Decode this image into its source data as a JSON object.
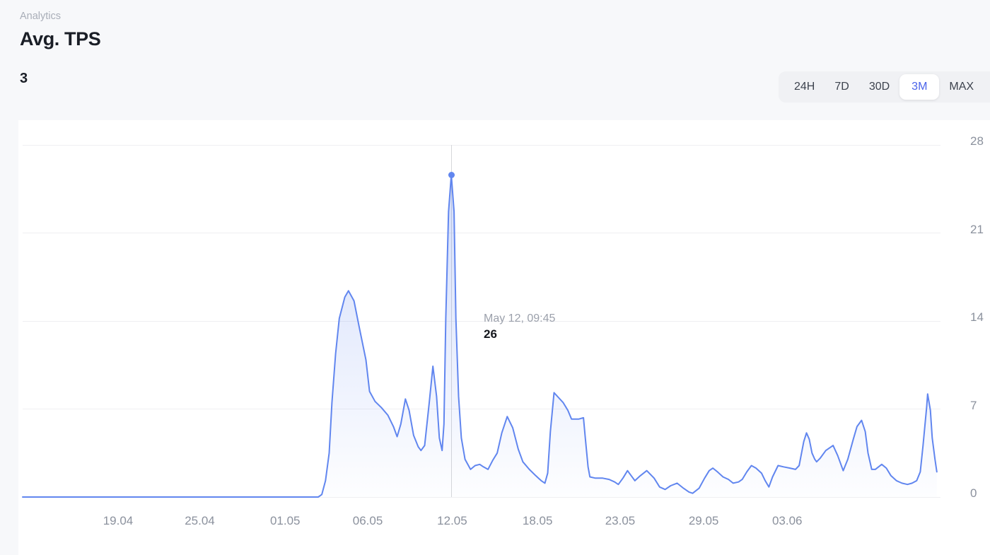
{
  "header": {
    "section_label": "Analytics",
    "title": "Avg. TPS",
    "current_value": "3"
  },
  "time_range": {
    "options": [
      "24H",
      "7D",
      "30D",
      "3M",
      "MAX"
    ],
    "active": "3M"
  },
  "tooltip": {
    "date": "May 12, 09:45",
    "value": "26"
  },
  "colors": {
    "accent_blue": "#4a63ea",
    "line_blue": "#6186ef",
    "fill_top": "rgba(97,134,240,0.28)",
    "fill_bottom": "rgba(97,134,240,0.01)",
    "crosshair_gray": "#d6d7da",
    "grid_gray": "#efeff2",
    "axis_text_gray": "#8b919d"
  },
  "chart_data": {
    "type": "area",
    "title": "Avg. TPS",
    "xlabel": "",
    "ylabel": "",
    "ylim": [
      0,
      28
    ],
    "y_ticks": [
      0,
      7,
      14,
      21,
      28
    ],
    "grid": true,
    "legend": "none",
    "x_ticks": [
      {
        "label": "19.04",
        "x": 0.104
      },
      {
        "label": "25.04",
        "x": 0.193
      },
      {
        "label": "01.05",
        "x": 0.286
      },
      {
        "label": "06.05",
        "x": 0.376
      },
      {
        "label": "12.05",
        "x": 0.468
      },
      {
        "label": "18.05",
        "x": 0.561
      },
      {
        "label": "23.05",
        "x": 0.651
      },
      {
        "label": "29.05",
        "x": 0.742
      },
      {
        "label": "03.06",
        "x": 0.833
      }
    ],
    "hover": {
      "x": 0.467,
      "value": 25.6,
      "date": "May 12, 09:45",
      "display_value": "26"
    },
    "points": [
      [
        0,
        0
      ],
      [
        0.322,
        0
      ],
      [
        0.326,
        0.2
      ],
      [
        0.33,
        1.3
      ],
      [
        0.334,
        3.5
      ],
      [
        0.337,
        7.5
      ],
      [
        0.341,
        11.4
      ],
      [
        0.345,
        14.2
      ],
      [
        0.351,
        15.9
      ],
      [
        0.355,
        16.4
      ],
      [
        0.361,
        15.6
      ],
      [
        0.367,
        13.4
      ],
      [
        0.374,
        10.9
      ],
      [
        0.378,
        8.4
      ],
      [
        0.384,
        7.6
      ],
      [
        0.391,
        7.1
      ],
      [
        0.398,
        6.5
      ],
      [
        0.404,
        5.6
      ],
      [
        0.408,
        4.8
      ],
      [
        0.412,
        5.8
      ],
      [
        0.417,
        7.8
      ],
      [
        0.421,
        6.9
      ],
      [
        0.426,
        4.9
      ],
      [
        0.431,
        4.0
      ],
      [
        0.434,
        3.7
      ],
      [
        0.438,
        4.1
      ],
      [
        0.443,
        7.5
      ],
      [
        0.447,
        10.4
      ],
      [
        0.451,
        8.0
      ],
      [
        0.454,
        4.7
      ],
      [
        0.457,
        3.7
      ],
      [
        0.459,
        5.8
      ],
      [
        0.461,
        14.2
      ],
      [
        0.464,
        22.7
      ],
      [
        0.467,
        25.6
      ],
      [
        0.47,
        22.7
      ],
      [
        0.472,
        14.2
      ],
      [
        0.475,
        8.0
      ],
      [
        0.478,
        4.7
      ],
      [
        0.482,
        3.0
      ],
      [
        0.488,
        2.2
      ],
      [
        0.493,
        2.5
      ],
      [
        0.498,
        2.6
      ],
      [
        0.502,
        2.4
      ],
      [
        0.507,
        2.2
      ],
      [
        0.512,
        2.9
      ],
      [
        0.517,
        3.5
      ],
      [
        0.522,
        5.1
      ],
      [
        0.528,
        6.4
      ],
      [
        0.534,
        5.5
      ],
      [
        0.54,
        3.8
      ],
      [
        0.545,
        2.8
      ],
      [
        0.552,
        2.2
      ],
      [
        0.559,
        1.7
      ],
      [
        0.565,
        1.3
      ],
      [
        0.569,
        1.1
      ],
      [
        0.572,
        1.9
      ],
      [
        0.575,
        5.2
      ],
      [
        0.579,
        8.3
      ],
      [
        0.584,
        7.9
      ],
      [
        0.589,
        7.5
      ],
      [
        0.594,
        6.9
      ],
      [
        0.598,
        6.2
      ],
      [
        0.606,
        6.2
      ],
      [
        0.611,
        6.3
      ],
      [
        0.613,
        4.7
      ],
      [
        0.616,
        2.4
      ],
      [
        0.618,
        1.6
      ],
      [
        0.624,
        1.5
      ],
      [
        0.632,
        1.5
      ],
      [
        0.639,
        1.4
      ],
      [
        0.645,
        1.2
      ],
      [
        0.649,
        1.0
      ],
      [
        0.654,
        1.5
      ],
      [
        0.659,
        2.1
      ],
      [
        0.663,
        1.7
      ],
      [
        0.667,
        1.3
      ],
      [
        0.673,
        1.7
      ],
      [
        0.68,
        2.1
      ],
      [
        0.688,
        1.5
      ],
      [
        0.694,
        0.8
      ],
      [
        0.7,
        0.6
      ],
      [
        0.706,
        0.9
      ],
      [
        0.713,
        1.1
      ],
      [
        0.72,
        0.7
      ],
      [
        0.726,
        0.4
      ],
      [
        0.73,
        0.3
      ],
      [
        0.737,
        0.7
      ],
      [
        0.743,
        1.5
      ],
      [
        0.748,
        2.1
      ],
      [
        0.752,
        2.3
      ],
      [
        0.757,
        2.0
      ],
      [
        0.763,
        1.6
      ],
      [
        0.769,
        1.4
      ],
      [
        0.774,
        1.1
      ],
      [
        0.78,
        1.2
      ],
      [
        0.784,
        1.4
      ],
      [
        0.789,
        2.0
      ],
      [
        0.794,
        2.5
      ],
      [
        0.799,
        2.3
      ],
      [
        0.805,
        1.9
      ],
      [
        0.809,
        1.3
      ],
      [
        0.813,
        0.8
      ],
      [
        0.817,
        1.6
      ],
      [
        0.823,
        2.5
      ],
      [
        0.829,
        2.4
      ],
      [
        0.836,
        2.3
      ],
      [
        0.842,
        2.2
      ],
      [
        0.846,
        2.5
      ],
      [
        0.851,
        4.4
      ],
      [
        0.854,
        5.1
      ],
      [
        0.857,
        4.6
      ],
      [
        0.86,
        3.5
      ],
      [
        0.863,
        3.0
      ],
      [
        0.865,
        2.8
      ],
      [
        0.869,
        3.1
      ],
      [
        0.875,
        3.7
      ],
      [
        0.883,
        4.1
      ],
      [
        0.888,
        3.3
      ],
      [
        0.894,
        2.1
      ],
      [
        0.899,
        3.0
      ],
      [
        0.905,
        4.6
      ],
      [
        0.909,
        5.6
      ],
      [
        0.914,
        6.1
      ],
      [
        0.918,
        5.2
      ],
      [
        0.921,
        3.5
      ],
      [
        0.925,
        2.2
      ],
      [
        0.929,
        2.2
      ],
      [
        0.936,
        2.6
      ],
      [
        0.941,
        2.3
      ],
      [
        0.946,
        1.7
      ],
      [
        0.952,
        1.3
      ],
      [
        0.958,
        1.1
      ],
      [
        0.964,
        1.0
      ],
      [
        0.969,
        1.1
      ],
      [
        0.974,
        1.3
      ],
      [
        0.978,
        2.0
      ],
      [
        0.981,
        4.1
      ],
      [
        0.985,
        7.2
      ],
      [
        0.986,
        8.2
      ],
      [
        0.989,
        6.9
      ],
      [
        0.991,
        4.7
      ],
      [
        0.994,
        3.0
      ],
      [
        0.996,
        2.0
      ]
    ]
  }
}
